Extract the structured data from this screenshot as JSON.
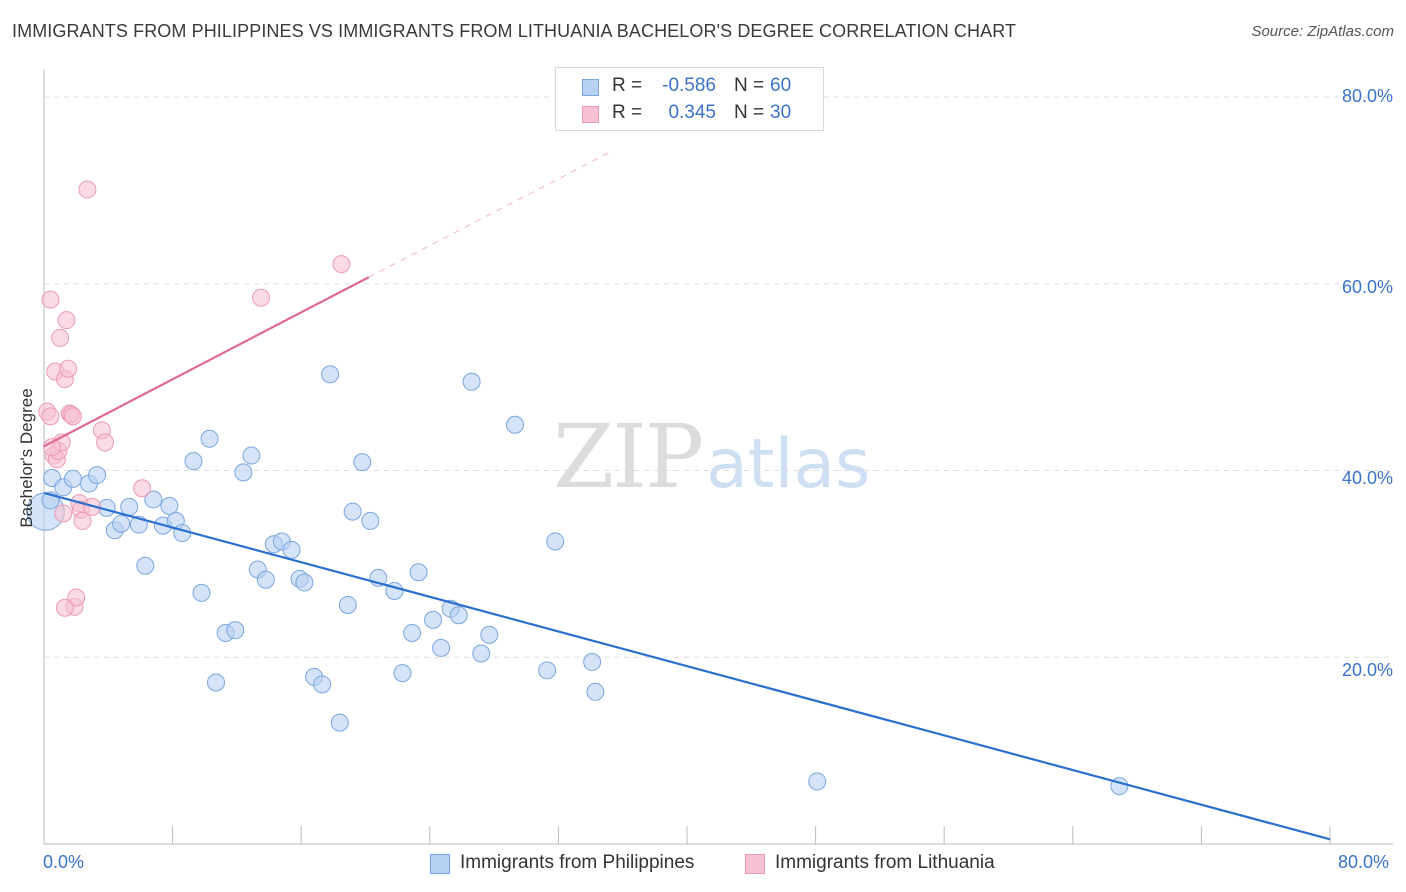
{
  "title": "IMMIGRANTS FROM PHILIPPINES VS IMMIGRANTS FROM LITHUANIA BACHELOR'S DEGREE CORRELATION CHART",
  "source": "Source: ZipAtlas.com",
  "watermark": {
    "zip": "ZIP",
    "atlas": "atlas"
  },
  "legend": {
    "rows": [
      {
        "r_label": "R =",
        "r_value": "-0.586",
        "n_label": "N =",
        "n_value": "60"
      },
      {
        "r_label": "R =",
        "r_value": "0.345",
        "n_label": "N =",
        "n_value": "30"
      }
    ]
  },
  "colors": {
    "philippines_fill": "#b7d1f3",
    "philippines_stroke": "#7aa6de",
    "philippines_line": "#2b6fcf",
    "lithuania_fill": "#f6c2d2",
    "lithuania_stroke": "#ec9ab4",
    "lithuania_line": "#e06a93",
    "tick_text": "#3a74c9",
    "grid": "#dcdcdc"
  },
  "chart_data": {
    "type": "scatter",
    "title": "IMMIGRANTS FROM PHILIPPINES VS IMMIGRANTS FROM LITHUANIA BACHELOR'S DEGREE CORRELATION CHART",
    "xlabel": "",
    "ylabel": "Bachelor's Degree",
    "xlim": [
      0,
      80
    ],
    "ylim": [
      0,
      82
    ],
    "x_tick_labels": [
      "0.0%",
      "80.0%"
    ],
    "y_ticks": [
      20,
      40,
      60,
      80
    ],
    "y_tick_labels": [
      "20.0%",
      "40.0%",
      "60.0%",
      "80.0%"
    ],
    "grid": "horizontal dashed",
    "legend_position": "bottom",
    "series": [
      {
        "name": "Immigrants from Philippines",
        "r": -0.586,
        "n": 60,
        "trend": {
          "x": [
            0,
            80
          ],
          "y": [
            37.6,
            0.5
          ]
        },
        "points": [
          [
            0.1,
            35.6,
            2.2
          ],
          [
            0.5,
            39.2,
            1.0
          ],
          [
            1.2,
            38.2,
            1.0
          ],
          [
            1.8,
            39.1,
            1.0
          ],
          [
            2.8,
            38.6,
            1.0
          ],
          [
            3.3,
            39.5,
            1.0
          ],
          [
            3.9,
            36.0,
            1.0
          ],
          [
            4.4,
            33.6,
            1.0
          ],
          [
            4.8,
            34.3,
            1.0
          ],
          [
            5.3,
            36.1,
            1.0
          ],
          [
            5.9,
            34.2,
            1.0
          ],
          [
            6.3,
            29.8,
            1.0
          ],
          [
            6.8,
            36.9,
            1.0
          ],
          [
            7.4,
            34.1,
            1.0
          ],
          [
            7.8,
            36.2,
            1.0
          ],
          [
            8.2,
            34.6,
            1.0
          ],
          [
            8.6,
            33.3,
            1.0
          ],
          [
            9.3,
            41.0,
            1.0
          ],
          [
            9.8,
            26.9,
            1.0
          ],
          [
            10.3,
            43.4,
            1.0
          ],
          [
            10.7,
            17.3,
            1.0
          ],
          [
            11.3,
            22.6,
            1.0
          ],
          [
            11.9,
            22.9,
            1.0
          ],
          [
            12.4,
            39.8,
            1.0
          ],
          [
            12.9,
            41.6,
            1.0
          ],
          [
            13.3,
            29.4,
            1.0
          ],
          [
            13.8,
            28.3,
            1.0
          ],
          [
            14.3,
            32.1,
            1.0
          ],
          [
            14.8,
            32.4,
            1.0
          ],
          [
            15.4,
            31.5,
            1.0
          ],
          [
            15.9,
            28.4,
            1.0
          ],
          [
            16.2,
            28.0,
            1.0
          ],
          [
            16.8,
            17.9,
            1.0
          ],
          [
            17.3,
            17.1,
            1.0
          ],
          [
            17.8,
            50.3,
            1.0
          ],
          [
            18.4,
            13.0,
            1.0
          ],
          [
            18.9,
            25.6,
            1.0
          ],
          [
            19.2,
            35.6,
            1.0
          ],
          [
            19.8,
            40.9,
            1.0
          ],
          [
            20.3,
            34.6,
            1.0
          ],
          [
            20.8,
            28.5,
            1.0
          ],
          [
            21.8,
            27.1,
            1.0
          ],
          [
            22.3,
            18.3,
            1.0
          ],
          [
            22.9,
            22.6,
            1.0
          ],
          [
            23.3,
            29.1,
            1.0
          ],
          [
            24.2,
            24.0,
            1.0
          ],
          [
            24.7,
            21.0,
            1.0
          ],
          [
            25.3,
            25.2,
            1.0
          ],
          [
            25.8,
            24.5,
            1.0
          ],
          [
            26.6,
            49.5,
            1.0
          ],
          [
            27.2,
            20.4,
            1.0
          ],
          [
            27.7,
            22.4,
            1.0
          ],
          [
            29.3,
            44.9,
            1.0
          ],
          [
            31.3,
            18.6,
            1.0
          ],
          [
            31.8,
            32.4,
            1.0
          ],
          [
            34.1,
            19.5,
            1.0
          ],
          [
            34.3,
            16.3,
            1.0
          ],
          [
            48.1,
            6.7,
            1.0
          ],
          [
            66.9,
            6.2,
            1.0
          ],
          [
            0.4,
            36.8,
            1.0
          ]
        ]
      },
      {
        "name": "Immigrants from Lithuania",
        "r": 0.345,
        "n": 30,
        "trend": {
          "x": [
            0,
            20.2
          ],
          "y": [
            42.6,
            60.7
          ]
        },
        "trend_extended": {
          "x": [
            20.2,
            35.1
          ],
          "y": [
            60.7,
            74.0
          ]
        },
        "points": [
          [
            0.2,
            46.3,
            1.0
          ],
          [
            0.4,
            45.8,
            1.0
          ],
          [
            0.4,
            58.3,
            1.0
          ],
          [
            0.6,
            41.6,
            1.0
          ],
          [
            0.7,
            50.6,
            1.0
          ],
          [
            0.8,
            41.2,
            1.0
          ],
          [
            0.9,
            42.1,
            1.0
          ],
          [
            1.0,
            54.2,
            1.0
          ],
          [
            1.1,
            43.0,
            1.0
          ],
          [
            1.2,
            35.4,
            1.0
          ],
          [
            1.3,
            49.8,
            1.0
          ],
          [
            1.4,
            56.1,
            1.0
          ],
          [
            1.5,
            50.9,
            1.0
          ],
          [
            1.6,
            46.1,
            1.0
          ],
          [
            1.7,
            46.0,
            1.0
          ],
          [
            1.8,
            45.8,
            1.0
          ],
          [
            1.9,
            25.4,
            1.0
          ],
          [
            2.0,
            26.4,
            1.0
          ],
          [
            2.2,
            36.5,
            1.0
          ],
          [
            2.3,
            35.8,
            1.0
          ],
          [
            2.4,
            34.6,
            1.0
          ],
          [
            2.7,
            70.1,
            1.0
          ],
          [
            3.0,
            36.1,
            1.0
          ],
          [
            3.6,
            44.3,
            1.0
          ],
          [
            3.8,
            43.0,
            1.0
          ],
          [
            6.1,
            38.1,
            1.0
          ],
          [
            13.5,
            58.5,
            1.0
          ],
          [
            18.5,
            62.1,
            1.0
          ],
          [
            1.3,
            25.3,
            1.0
          ],
          [
            0.5,
            42.5,
            1.0
          ]
        ]
      }
    ]
  }
}
